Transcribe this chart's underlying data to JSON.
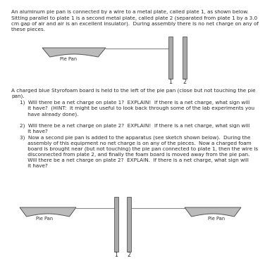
{
  "bg_color": "#ffffff",
  "text_color": "#2a2a2a",
  "plate_color": "#aaaaaa",
  "pan_color": "#bbbbbb",
  "wire_color": "#888888",
  "paragraph1": "An aluminum pie pan is connected by a wire to a metal plate, called plate 1, as shown below.\nSitting parallel to plate 1 is a second metal plate, called plate 2 (separated from plate 1 by a 3.0\ncm gap of air and air is an excellent insulator).  During assembly there is no net charge on any of\nthese pieces.",
  "paragraph2": "A charged blue Styrofoam board is held to the left of the pie pan (close but not touching the pie\npan).",
  "item1": "1)  Will there be a net charge on plate 1?  EXPLAIN!  If there is a net charge, what sign will\n     it have?  (HINT:  it might be useful to look back through some of the lab experiments you\n     have already done).",
  "item2": "2)  Will there be a net charge on plate 2?  EXPLAIN!  If there is a net charge, what sign will\n     it have?",
  "item3": "3)  Now a second pie pan is added to the apparatus (see sketch shown below).  During the\n     assembly of this equipment no net charge is on any of the pieces.  Now a charged foam\n     board is brought near (but not touching) the pie pan connected to plate 1, then the wire is\n     disconnected from plate 2, and finally the foam board is moved away from the pie pan.\n     Will there be a net charge on plate 2?  EXPLAIN.  If there is a net charge, what sign will\n     it have?",
  "label_pie_pan": "Pie Pan",
  "label_1": "1",
  "label_2": "2",
  "fontsize_body": 5.2,
  "fontsize_label": 4.8
}
